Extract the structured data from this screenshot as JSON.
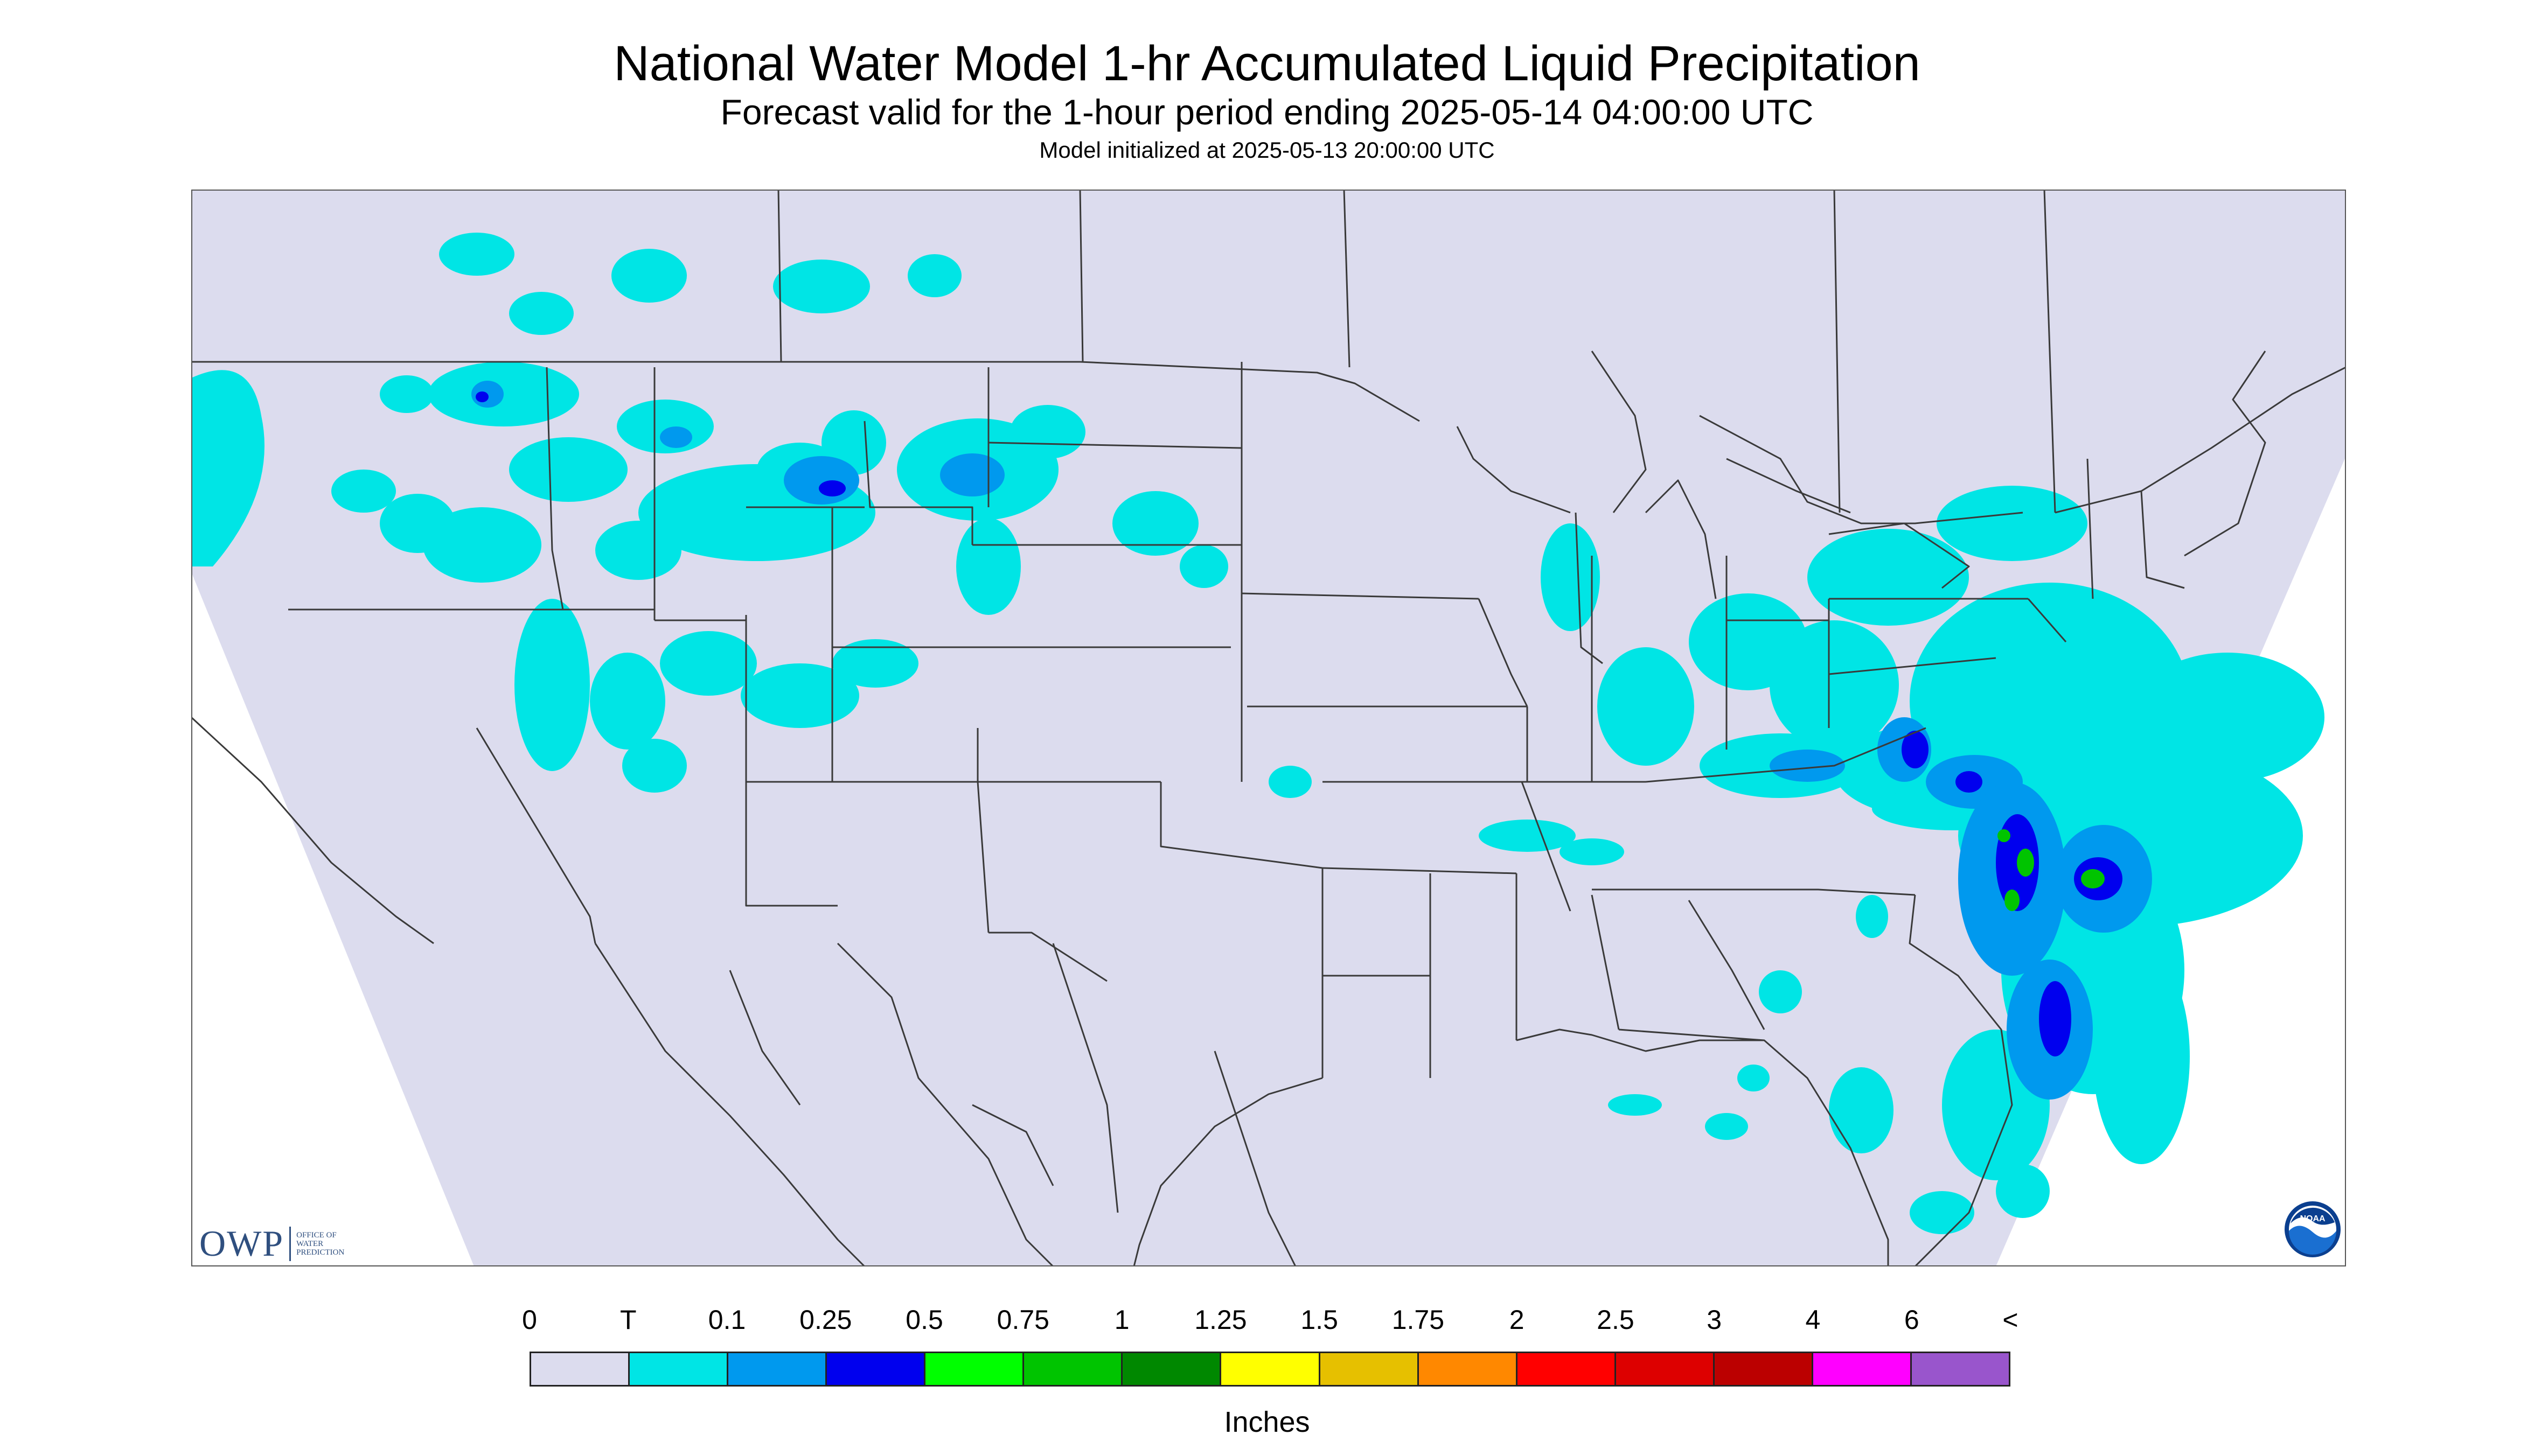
{
  "header": {
    "title": "National Water Model 1-hr Accumulated Liquid Precipitation",
    "subtitle": "Forecast valid for the 1-hour period ending 2025-05-14 04:00:00 UTC",
    "init_line": "Model initialized at 2025-05-13 20:00:00 UTC"
  },
  "legend": {
    "units": "Inches",
    "labels": [
      "0",
      "T",
      "0.1",
      "0.25",
      "0.5",
      "0.75",
      "1",
      "1.25",
      "1.5",
      "1.75",
      "2",
      "2.5",
      "3",
      "4",
      "6",
      "<"
    ],
    "colors": [
      "#dcdcee",
      "#00e5e5",
      "#0099ee",
      "#0000ee",
      "#00ff00",
      "#00c400",
      "#008800",
      "#ffff00",
      "#e6c000",
      "#ff8800",
      "#ff0000",
      "#dd0000",
      "#bb0000",
      "#ff00ff",
      "#9955cc"
    ]
  },
  "map": {
    "background_color": "#dcdcee",
    "outside_color": "#ffffff",
    "border_color": "#3a3a3a",
    "precip_light_color": "#00e5e5",
    "precip_medium_color": "#0099ee",
    "precip_heavy_color": "#0000ee",
    "precip_intense_color": "#00c400"
  },
  "logos": {
    "owp": {
      "text": "OWP",
      "subtext": "OFFICE OF\nWATER\nPREDICTION"
    },
    "noaa": {
      "text": "NOAA"
    }
  }
}
